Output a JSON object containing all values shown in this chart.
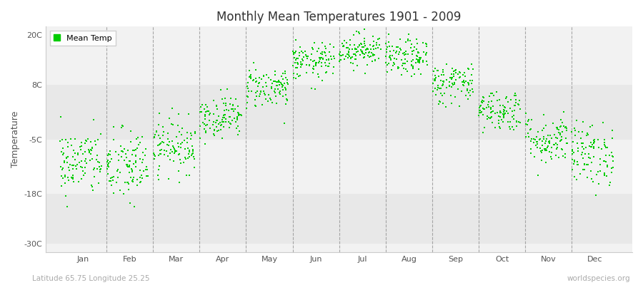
{
  "title": "Monthly Mean Temperatures 1901 - 2009",
  "ylabel": "Temperature",
  "xlabel_months": [
    "Jan",
    "Feb",
    "Mar",
    "Apr",
    "May",
    "Jun",
    "Jul",
    "Aug",
    "Sep",
    "Oct",
    "Nov",
    "Dec"
  ],
  "subtitle": "Latitude 65.75 Longitude 25.25",
  "watermark": "worldspecies.org",
  "legend_label": "Mean Temp",
  "dot_color": "#00CC00",
  "bg_light": "#f2f2f2",
  "bg_dark": "#e8e8e8",
  "yticks": [
    -30,
    -18,
    -5,
    8,
    20
  ],
  "ytick_labels": [
    "-30C",
    "-18C",
    "-5C",
    "8C",
    "20C"
  ],
  "ylim": [
    -32,
    22
  ],
  "xlim": [
    -0.3,
    12.3
  ],
  "num_years": 109,
  "monthly_means": [
    -10.5,
    -11.5,
    -6.5,
    0.5,
    7.5,
    13.5,
    16.5,
    14.5,
    8.5,
    2.0,
    -5.0,
    -8.5
  ],
  "monthly_stds": [
    4.0,
    4.5,
    3.2,
    2.5,
    2.5,
    2.2,
    2.0,
    2.2,
    2.5,
    2.5,
    3.0,
    3.8
  ]
}
